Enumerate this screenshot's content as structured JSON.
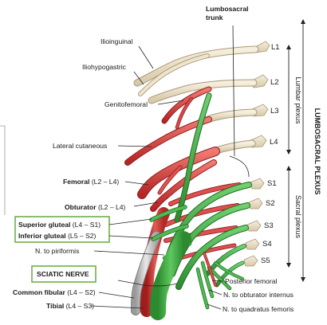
{
  "colors": {
    "lumbar_nerve": "#e7dcc4",
    "lumbar_nerve_edge": "#a9987a",
    "red_nerve": "#d63a3a",
    "red_nerve_edge": "#8e1c1c",
    "green_nerve": "#3ea641",
    "green_nerve_edge": "#1f6b22",
    "gray_nerve": "#bdbdbd",
    "box_border": "#6fae4c"
  },
  "title_top": {
    "line1": "Lumbosacral",
    "line2": "trunk"
  },
  "roots": [
    "L1",
    "L2",
    "L3",
    "L4",
    "S1",
    "S2",
    "S3",
    "S4",
    "S5"
  ],
  "brackets": {
    "lumbar": "Lumbar plexus",
    "sacral": "Sacral plexus",
    "plexus": "LUMBOSACRAL PLEXUS"
  },
  "labels": {
    "ilioinguinal": "Ilioinguinal",
    "iliohypogastric": "Iliohypogastric",
    "genitofemoral": "Genitofemoral",
    "lateral_cutaneous": "Lateral cutaneous",
    "femoral_name": "Femoral",
    "femoral_roots": " (L2 – L4)",
    "obturator_name": "Obturator",
    "obturator_roots": " (L2 – L4)",
    "superior_gluteal_name": "Superior gluteal",
    "superior_gluteal_roots": " (L4 – S1)",
    "inferior_gluteal_name": "Inferior gluteal",
    "inferior_gluteal_roots": " (L5 – S2)",
    "piriformis": "N. to piriformis",
    "sciatic": "SCIATIC NERVE",
    "common_fibular_name": "Common fibular",
    "common_fibular_roots": " (L4 – S2)",
    "tibial_name": "Tibial",
    "tibial_roots": " (L4 – S3)",
    "posterior_femoral": "Posterior femoral",
    "obturator_internus": "N. to obturator internus",
    "quadratus_femoris": "N. to quadratus femoris"
  }
}
